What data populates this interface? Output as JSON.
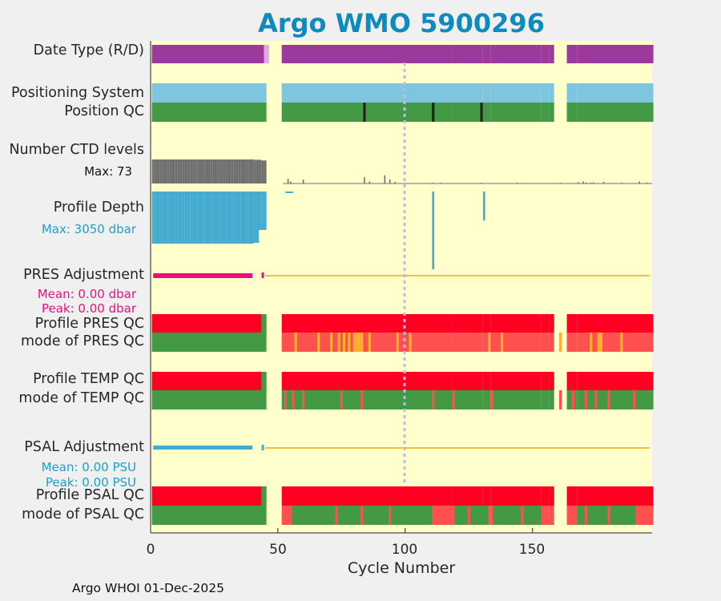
{
  "chart_data": {
    "type": "bar",
    "title": "Argo WMO 5900296",
    "xlabel": "Cycle Number",
    "xlim": [
      0,
      197
    ],
    "xticks": [
      "0",
      "50",
      "100",
      "150"
    ],
    "reference_cycle": 100,
    "footer": "Argo WHOI 01-Dec-2025",
    "colors": {
      "background": "#ffffcc",
      "realtime": "#9b3a9b",
      "delayed": "#e2a8d8",
      "position_system": "#7ec5e0",
      "good": "#449944",
      "bad": "#ff0022",
      "qc_mix": "#ff5050",
      "qc_orange": "#ffb030",
      "dark": "#222222",
      "ctd": "#707070",
      "depth": "#43aad0",
      "pres_adj": "#e8117f",
      "psal_adj": "#43aad0",
      "zero_line": "#f0bf40",
      "refline": "#bbbbdd",
      "title": "#0d8bbf"
    },
    "present_cycles": [
      [
        1,
        45
      ],
      [
        52,
        112
      ],
      [
        113,
        118
      ],
      [
        119,
        130
      ],
      [
        131,
        133
      ],
      [
        134,
        153
      ],
      [
        154,
        156
      ],
      [
        157,
        158
      ],
      [
        164,
        167
      ],
      [
        168,
        197
      ]
    ],
    "delayed_mode_cycles": [
      [
        45,
        46
      ]
    ],
    "position_qc_dark_cycles": [
      84,
      111,
      130
    ],
    "ctd_levels": {
      "max": 73,
      "max_label": "Max: 73",
      "dense_range": [
        1,
        45
      ],
      "sparse": [
        [
          54,
          14
        ],
        [
          55,
          6
        ],
        [
          60,
          12
        ],
        [
          84,
          19
        ],
        [
          86,
          6
        ],
        [
          92,
          25
        ],
        [
          94,
          12
        ],
        [
          96,
          5
        ],
        [
          111,
          1
        ],
        [
          114,
          1
        ],
        [
          130,
          1
        ],
        [
          144,
          1
        ],
        [
          161,
          1
        ],
        [
          168,
          4
        ],
        [
          170,
          6
        ],
        [
          171,
          2
        ],
        [
          173,
          2
        ],
        [
          174,
          3
        ],
        [
          178,
          5
        ],
        [
          185,
          1
        ],
        [
          192,
          6
        ],
        [
          195,
          3
        ]
      ]
    },
    "profile_depth": {
      "max": 3050,
      "max_label": "Max: 3050 dbar",
      "spikes": [
        [
          111,
          0.97
        ],
        [
          131,
          0.36
        ]
      ]
    },
    "pres_adjustment": {
      "label": "PRES Adjustment",
      "mean_label": "Mean: 0.00 dbar",
      "peak_label": "Peak: 0.00 dbar",
      "mean": 0.0,
      "peak": 0.0
    },
    "psal_adjustment": {
      "label": "PSAL Adjustment",
      "mean_label": "Mean: 0.00 PSU",
      "peak_label": "Peak: 0.00 PSU",
      "mean": 0.0,
      "peak": 0.0
    },
    "pres_mode_orange_cycles": [
      57,
      66,
      71,
      74,
      76,
      78,
      80,
      81,
      82,
      83,
      86,
      97,
      102,
      133,
      138,
      161,
      173,
      176,
      177,
      185
    ],
    "temp_mode_mix_cycles": [
      53,
      56,
      60,
      75,
      83,
      111,
      119,
      134,
      161,
      166,
      171,
      175,
      180,
      190
    ],
    "psal_mode_mix_cycles": [
      56,
      60,
      70,
      75,
      83,
      94,
      111,
      119,
      134,
      161,
      166,
      171,
      175,
      180,
      190
    ],
    "row_labels": {
      "date_type": "Date Type (R/D)",
      "positioning_system": "Positioning System",
      "position_qc": "Position QC",
      "ctd_levels": "Number CTD levels",
      "profile_depth": "Profile Depth",
      "pres_adjustment": "PRES Adjustment",
      "profile_pres_qc": "Profile PRES QC",
      "mode_pres_qc": "mode of PRES QC",
      "profile_temp_qc": "Profile TEMP QC",
      "mode_temp_qc": "mode of TEMP QC",
      "psal_adjustment": "PSAL Adjustment",
      "profile_psal_qc": "Profile PSAL QC",
      "mode_psal_qc": "mode of PSAL QC"
    }
  }
}
